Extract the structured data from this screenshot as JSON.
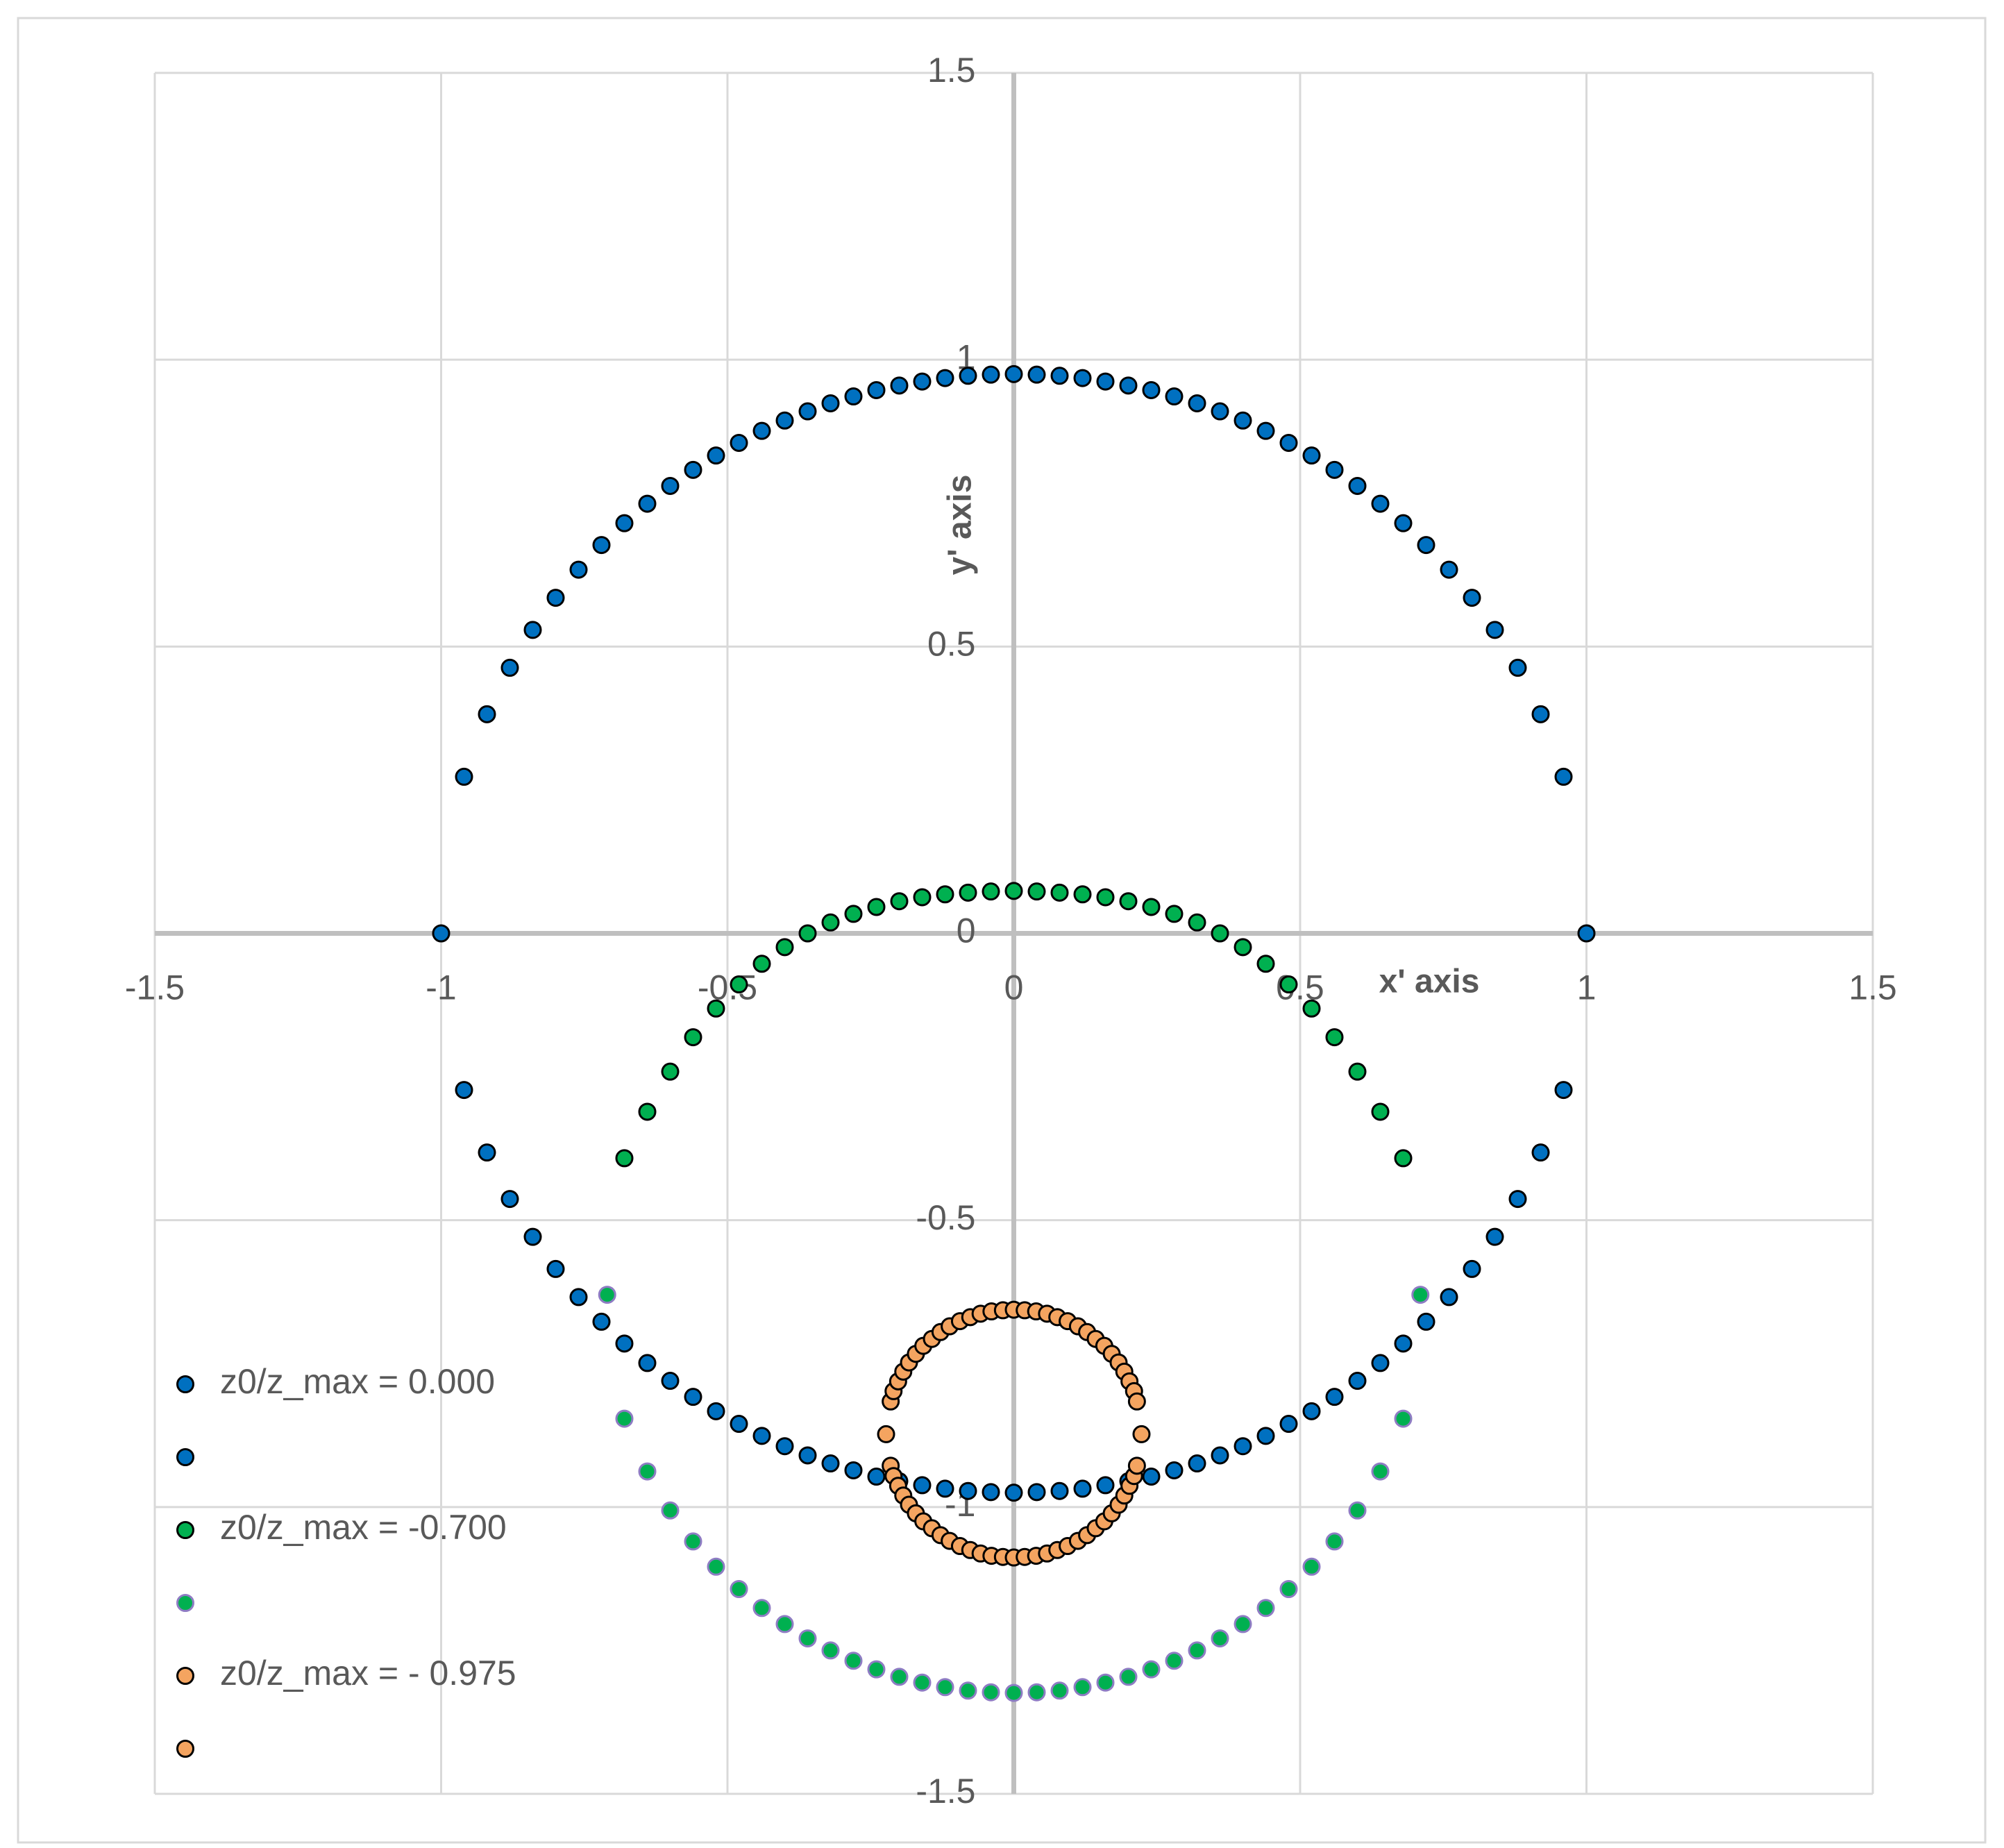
{
  "chart_data": {
    "type": "scatter",
    "x_label": "x' axis",
    "y_label": "y' axis",
    "xlim": [
      -1.5,
      1.5
    ],
    "ylim": [
      -1.5,
      1.5
    ],
    "xticks": [
      -1.5,
      -1,
      -0.5,
      0,
      0.5,
      1,
      1.5
    ],
    "yticks": [
      -1.5,
      -1,
      -0.5,
      0,
      0.5,
      1,
      1.5
    ],
    "grid": true,
    "legend": "lower-left",
    "series": [
      {
        "name": "z0/z_max = 0.000",
        "color": "#0070c0",
        "edgecolor": "#000000",
        "x": [
          -1,
          -0.96,
          -0.92,
          -0.88,
          -0.84,
          -0.8,
          -0.76,
          -0.72,
          -0.68,
          -0.64,
          -0.6,
          -0.56,
          -0.52,
          -0.48,
          -0.44,
          -0.4,
          -0.36,
          -0.32,
          -0.28,
          -0.24,
          -0.2,
          -0.16,
          -0.12,
          -0.08,
          -0.04,
          0,
          0.04,
          0.08,
          0.12,
          0.16,
          0.2,
          0.24,
          0.28,
          0.32,
          0.36,
          0.4,
          0.44,
          0.48,
          0.52,
          0.56,
          0.6,
          0.64,
          0.68,
          0.72,
          0.76,
          0.8,
          0.84,
          0.88,
          0.92,
          0.96,
          1
        ],
        "values": [
          0,
          0.273,
          0.382,
          0.463,
          0.529,
          0.585,
          0.634,
          0.677,
          0.715,
          0.749,
          0.78,
          0.808,
          0.833,
          0.855,
          0.876,
          0.894,
          0.91,
          0.924,
          0.936,
          0.947,
          0.955,
          0.962,
          0.968,
          0.972,
          0.974,
          0.975,
          0.974,
          0.972,
          0.968,
          0.962,
          0.955,
          0.947,
          0.936,
          0.924,
          0.91,
          0.894,
          0.876,
          0.855,
          0.833,
          0.808,
          0.78,
          0.749,
          0.715,
          0.677,
          0.634,
          0.585,
          0.529,
          0.463,
          0.382,
          0.273,
          0
        ]
      },
      {
        "color": "#0070c0",
        "edgecolor": "#000000",
        "x": [
          -0.96,
          -0.92,
          -0.88,
          -0.84,
          -0.8,
          -0.76,
          -0.72,
          -0.68,
          -0.64,
          -0.6,
          -0.56,
          -0.52,
          -0.48,
          -0.44,
          -0.4,
          -0.36,
          -0.32,
          -0.28,
          -0.24,
          -0.2,
          -0.16,
          -0.12,
          -0.08,
          -0.04,
          0,
          0.04,
          0.08,
          0.12,
          0.16,
          0.2,
          0.24,
          0.28,
          0.32,
          0.36,
          0.4,
          0.44,
          0.48,
          0.52,
          0.56,
          0.6,
          0.64,
          0.68,
          0.72,
          0.76,
          0.8,
          0.84,
          0.88,
          0.92,
          0.96
        ],
        "values": [
          -0.273,
          -0.382,
          -0.463,
          -0.529,
          -0.585,
          -0.634,
          -0.677,
          -0.715,
          -0.749,
          -0.78,
          -0.808,
          -0.833,
          -0.855,
          -0.876,
          -0.894,
          -0.91,
          -0.924,
          -0.936,
          -0.947,
          -0.955,
          -0.962,
          -0.968,
          -0.972,
          -0.974,
          -0.975,
          -0.974,
          -0.972,
          -0.968,
          -0.962,
          -0.955,
          -0.947,
          -0.936,
          -0.924,
          -0.91,
          -0.894,
          -0.876,
          -0.855,
          -0.833,
          -0.808,
          -0.78,
          -0.749,
          -0.715,
          -0.677,
          -0.634,
          -0.585,
          -0.529,
          -0.463,
          -0.382,
          -0.273
        ]
      },
      {
        "name": "z0/z_max = -0.700",
        "color": "#00b050",
        "edgecolor": "#000000",
        "x": [
          -0.68,
          -0.64,
          -0.6,
          -0.56,
          -0.52,
          -0.48,
          -0.44,
          -0.4,
          -0.36,
          -0.32,
          -0.28,
          -0.24,
          -0.2,
          -0.16,
          -0.12,
          -0.08,
          -0.04,
          0,
          0.04,
          0.08,
          0.12,
          0.16,
          0.2,
          0.24,
          0.28,
          0.32,
          0.36,
          0.4,
          0.44,
          0.48,
          0.52,
          0.56,
          0.6,
          0.64,
          0.68
        ],
        "values": [
          -0.392,
          -0.311,
          -0.241,
          -0.181,
          -0.131,
          -0.089,
          -0.053,
          -0.024,
          0,
          0.019,
          0.034,
          0.046,
          0.056,
          0.063,
          0.068,
          0.071,
          0.073,
          0.074,
          0.073,
          0.071,
          0.068,
          0.063,
          0.056,
          0.046,
          0.034,
          0.019,
          0,
          -0.024,
          -0.053,
          -0.089,
          -0.131,
          -0.181,
          -0.241,
          -0.311,
          -0.392
        ]
      },
      {
        "color": "#00b050",
        "edgecolor": "#8e7cc3",
        "x": [
          -0.71,
          -0.68,
          -0.64,
          -0.6,
          -0.56,
          -0.52,
          -0.48,
          -0.44,
          -0.4,
          -0.36,
          -0.32,
          -0.28,
          -0.24,
          -0.2,
          -0.16,
          -0.12,
          -0.08,
          -0.04,
          0,
          0.04,
          0.08,
          0.12,
          0.16,
          0.2,
          0.24,
          0.28,
          0.32,
          0.36,
          0.4,
          0.44,
          0.48,
          0.52,
          0.56,
          0.6,
          0.64,
          0.68,
          0.71
        ],
        "values": [
          -0.63,
          -0.846,
          -0.938,
          -1.006,
          -1.06,
          -1.104,
          -1.143,
          -1.176,
          -1.204,
          -1.229,
          -1.25,
          -1.268,
          -1.283,
          -1.296,
          -1.306,
          -1.314,
          -1.32,
          -1.323,
          -1.324,
          -1.323,
          -1.32,
          -1.314,
          -1.306,
          -1.296,
          -1.283,
          -1.268,
          -1.25,
          -1.229,
          -1.204,
          -1.176,
          -1.143,
          -1.104,
          -1.06,
          -1.006,
          -0.938,
          -0.846,
          -0.63
        ]
      },
      {
        "name": "z0/z_max = - 0.975",
        "color": "#f4a460",
        "edgecolor": "#000000",
        "x": [
          -0.223,
          -0.215,
          -0.21,
          -0.202,
          -0.193,
          -0.183,
          -0.171,
          -0.158,
          -0.143,
          -0.128,
          -0.112,
          -0.094,
          -0.076,
          -0.058,
          -0.039,
          -0.019,
          0,
          0.019,
          0.039,
          0.058,
          0.076,
          0.094,
          0.112,
          0.128,
          0.143,
          0.158,
          0.171,
          0.183,
          0.193,
          0.202,
          0.21,
          0.215,
          0.223
        ],
        "values": [
          -0.873,
          -0.816,
          -0.798,
          -0.781,
          -0.764,
          -0.748,
          -0.733,
          -0.719,
          -0.707,
          -0.695,
          -0.685,
          -0.676,
          -0.669,
          -0.663,
          -0.659,
          -0.657,
          -0.656,
          -0.657,
          -0.659,
          -0.663,
          -0.669,
          -0.676,
          -0.685,
          -0.695,
          -0.707,
          -0.719,
          -0.733,
          -0.748,
          -0.764,
          -0.781,
          -0.798,
          -0.816,
          -0.873
        ]
      },
      {
        "color": "#f4a460",
        "edgecolor": "#000000",
        "x": [
          -0.215,
          -0.21,
          -0.202,
          -0.193,
          -0.183,
          -0.171,
          -0.158,
          -0.143,
          -0.128,
          -0.112,
          -0.094,
          -0.076,
          -0.058,
          -0.039,
          -0.019,
          0,
          0.019,
          0.039,
          0.058,
          0.076,
          0.094,
          0.112,
          0.128,
          0.143,
          0.158,
          0.171,
          0.183,
          0.193,
          0.202,
          0.21,
          0.215
        ],
        "values": [
          -0.928,
          -0.946,
          -0.963,
          -0.98,
          -0.996,
          -1.011,
          -1.025,
          -1.037,
          -1.049,
          -1.059,
          -1.068,
          -1.075,
          -1.081,
          -1.085,
          -1.087,
          -1.088,
          -1.087,
          -1.085,
          -1.081,
          -1.075,
          -1.068,
          -1.059,
          -1.049,
          -1.037,
          -1.025,
          -1.011,
          -0.996,
          -0.98,
          -0.963,
          -0.946,
          -0.928
        ]
      }
    ]
  }
}
